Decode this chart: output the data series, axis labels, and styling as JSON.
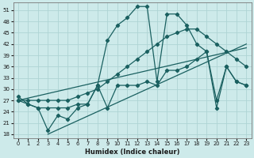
{
  "bg_color": "#cdeaea",
  "grid_color": "#aed4d4",
  "line_color": "#1a6060",
  "xlabel": "Humidex (Indice chaleur)",
  "xlim": [
    -0.5,
    23.5
  ],
  "ylim": [
    17,
    53
  ],
  "yticks": [
    18,
    21,
    24,
    27,
    30,
    33,
    36,
    39,
    42,
    45,
    48,
    51
  ],
  "xticks": [
    0,
    1,
    2,
    3,
    4,
    5,
    6,
    7,
    8,
    9,
    10,
    11,
    12,
    13,
    14,
    15,
    16,
    17,
    18,
    19,
    20,
    21,
    22,
    23
  ],
  "series1_x": [
    0,
    1,
    2,
    3,
    4,
    5,
    6,
    7,
    8,
    9,
    10,
    11,
    12,
    13,
    14,
    15,
    16,
    17,
    18,
    19,
    20,
    21,
    22,
    23
  ],
  "series1_y": [
    28,
    26,
    25,
    19,
    23,
    22,
    25,
    26,
    31,
    43,
    47,
    49,
    52,
    52,
    32,
    50,
    50,
    47,
    42,
    40,
    25,
    36,
    32,
    31
  ],
  "series2_x": [
    0,
    1,
    2,
    3,
    4,
    5,
    6,
    7,
    8,
    9,
    10,
    11,
    12,
    13,
    14,
    15,
    16,
    17,
    18,
    19,
    20,
    21,
    22,
    23
  ],
  "series2_y": [
    27,
    27,
    27,
    27,
    27,
    27,
    28,
    29,
    30,
    32,
    34,
    36,
    38,
    40,
    42,
    44,
    45,
    46,
    46,
    44,
    42,
    40,
    38,
    36
  ],
  "series3_x": [
    0,
    1,
    2,
    3,
    4,
    5,
    6,
    7,
    8,
    9,
    10,
    11,
    12,
    13,
    14,
    15,
    16,
    17,
    18,
    19,
    20,
    21,
    22,
    23
  ],
  "series3_y": [
    27,
    26,
    25,
    25,
    25,
    25,
    26,
    26,
    31,
    25,
    31,
    31,
    31,
    32,
    31,
    35,
    35,
    36,
    38,
    40,
    27,
    36,
    32,
    31
  ],
  "series4_x": [
    3,
    23
  ],
  "series4_y": [
    18,
    42
  ],
  "series5_x": [
    0,
    23
  ],
  "series5_y": [
    27,
    41
  ]
}
